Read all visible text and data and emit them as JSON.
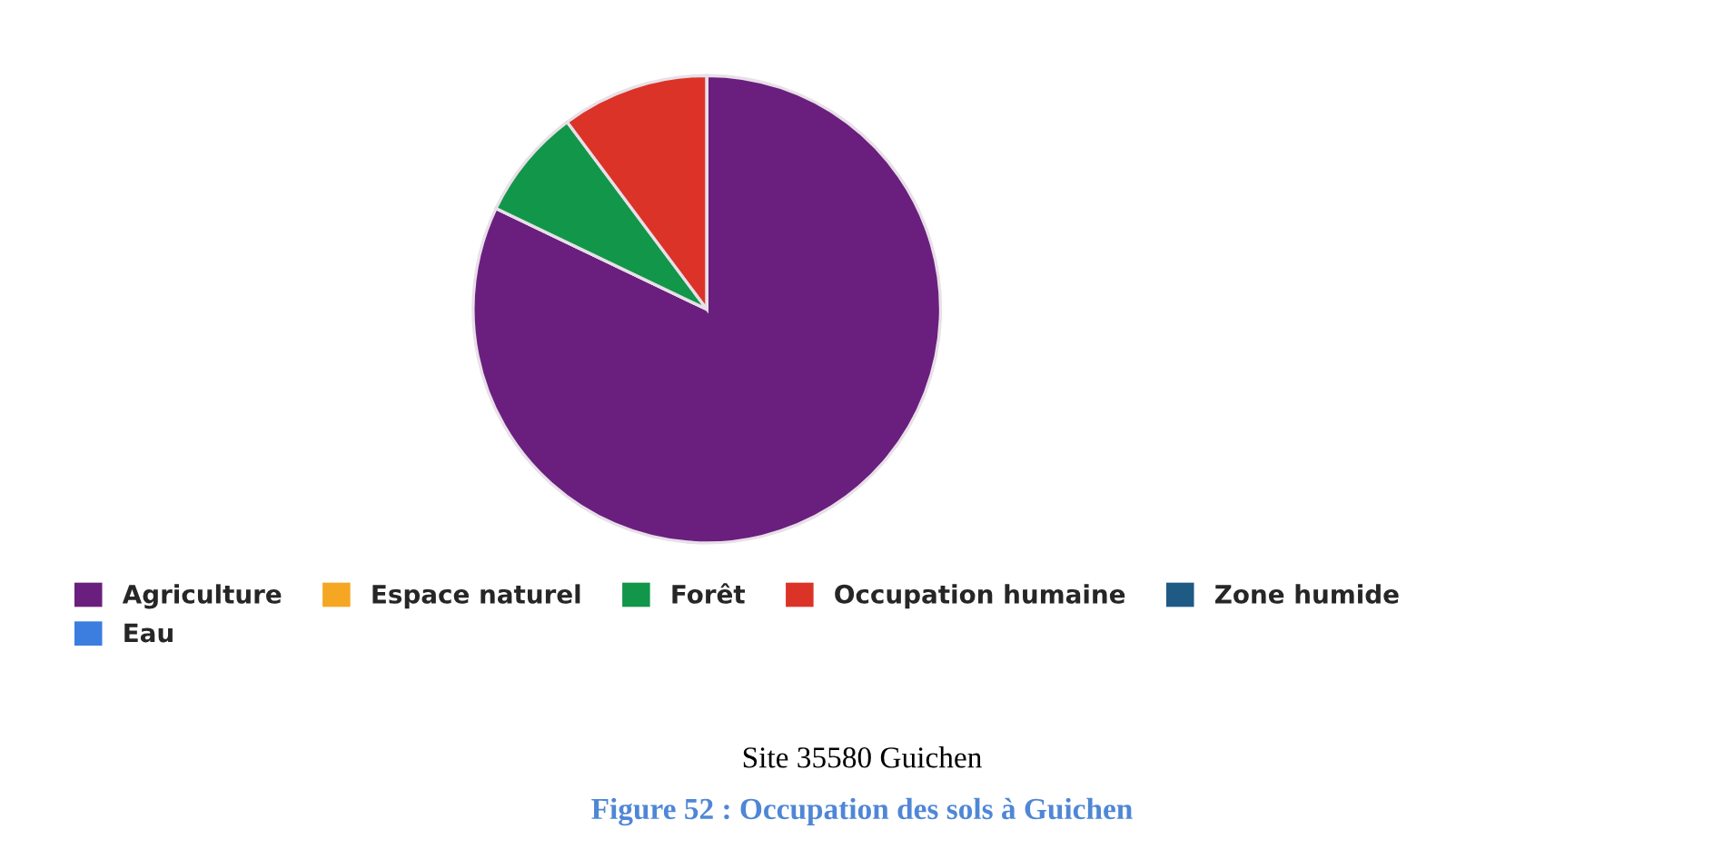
{
  "chart_data": {
    "type": "pie",
    "title": "Figure 52 : Occupation des sols à Guichen",
    "subtitle": "Site 35580 Guichen",
    "categories": [
      "Agriculture",
      "Eau",
      "Espace naturel",
      "Forêt",
      "Occupation humaine",
      "Zone humide"
    ],
    "values": [
      82.1,
      0,
      0,
      7.7,
      10.2,
      0
    ],
    "colors": [
      "#6a1f7e",
      "#3b7ee0",
      "#f5a623",
      "#12964a",
      "#dc3328",
      "#1f5a85"
    ],
    "legend": "bottom"
  }
}
